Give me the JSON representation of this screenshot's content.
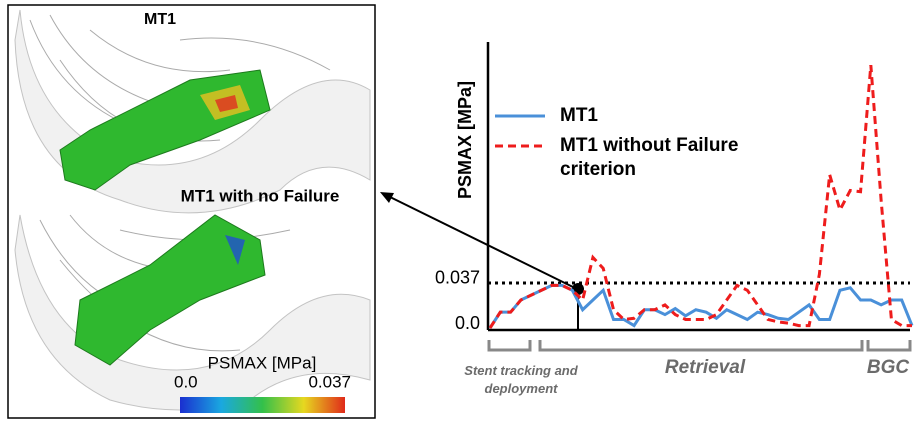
{
  "chart_data": {
    "type": "line",
    "y_label": "PSMAX [MPa]",
    "ylim": [
      0,
      0.235
    ],
    "yticks": [
      {
        "value": 0,
        "label": "0.0"
      },
      0.037
    ],
    "xlim": [
      0,
      41
    ],
    "x": [
      0,
      1,
      2,
      3,
      4,
      5,
      6,
      7,
      8,
      9,
      10,
      11,
      12,
      13,
      14,
      15,
      16,
      17,
      18,
      19,
      20,
      21,
      22,
      23,
      24,
      25,
      26,
      27,
      28,
      29,
      30,
      31,
      32,
      33,
      34,
      35,
      36,
      37,
      38,
      39,
      40,
      41
    ],
    "series": [
      {
        "name": "MT1",
        "color": "#4a90d9",
        "dashed": false,
        "values": [
          0,
          0.013,
          0.013,
          0.023,
          0.027,
          0.031,
          0.035,
          0.035,
          0.031,
          0.015,
          0.023,
          0.031,
          0.007,
          0.007,
          0.002,
          0.015,
          0.015,
          0.011,
          0.016,
          0.01,
          0.015,
          0.013,
          0.008,
          0.015,
          0.011,
          0.007,
          0.013,
          0.011,
          0.008,
          0.007,
          0.013,
          0.019,
          0.007,
          0.007,
          0.031,
          0.033,
          0.023,
          0.023,
          0.019,
          0.023,
          0.023,
          0.002
        ]
      },
      {
        "name": "MT1 without Failure criterion",
        "color": "#ee1c1c",
        "dashed": true,
        "values": [
          0,
          0.013,
          0.013,
          0.023,
          0.027,
          0.031,
          0.035,
          0.035,
          0.031,
          0.023,
          0.058,
          0.049,
          0.015,
          0.007,
          0.008,
          0.015,
          0.015,
          0.019,
          0.011,
          0.007,
          0.007,
          0.007,
          0.011,
          0.023,
          0.035,
          0.031,
          0.019,
          0.007,
          0.005,
          0.004,
          0.002,
          0.002,
          0.044,
          0.126,
          0.097,
          0.113,
          0.112,
          0.216,
          0.105,
          0.007,
          0.002,
          0.002
        ]
      }
    ],
    "phases": [
      "Stent tracking and deployment",
      "Retrieval",
      "BGC"
    ],
    "panel": {
      "top_label": "MT1",
      "bottom_label": "MT1 with no Failure",
      "colorbar": {
        "title": "PSMAX [MPa]",
        "lim": [
          0,
          0.037
        ],
        "ticks": [
          {
            "value": 0,
            "label": "0.0"
          },
          0.037
        ]
      }
    }
  }
}
